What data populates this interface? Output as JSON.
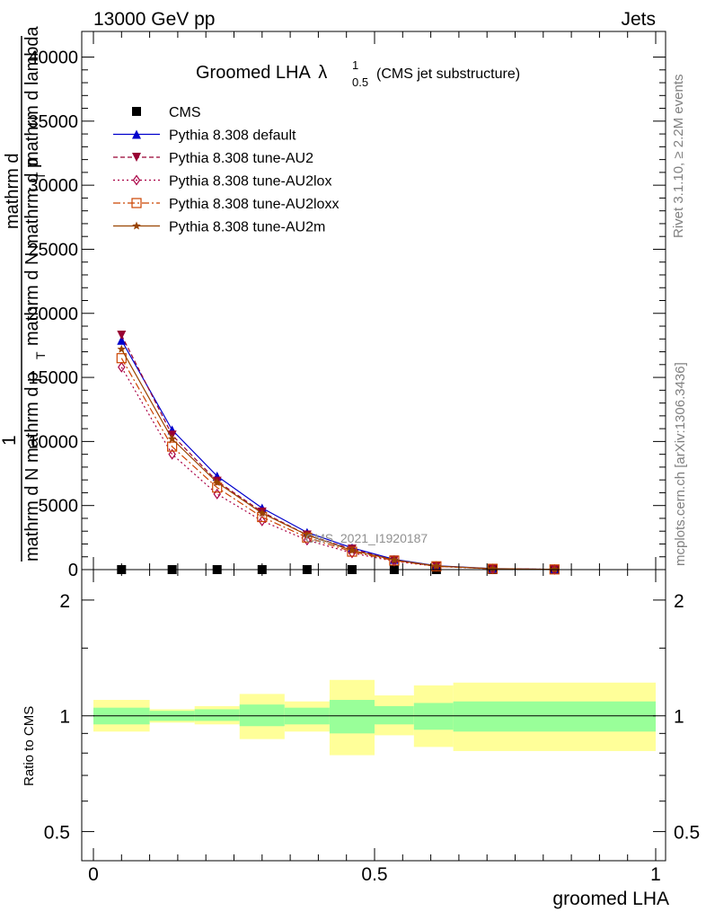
{
  "header": {
    "left": "13000 GeV pp",
    "right": "Jets"
  },
  "side_labels": {
    "rivet": "Rivet 3.1.10, ≥ 2.2M events",
    "mcplots": "mcplots.cern.ch [arXiv:1306.3436]"
  },
  "watermark": "CMS_2021_I1920187",
  "chart_data": [
    {
      "type": "line",
      "title_main": "Groomed LHA",
      "title_lambda": "λ",
      "title_sup": "1",
      "title_sub": "0.5",
      "title_suffix": "(CMS jet substructure)",
      "ylabel_parts": [
        "1",
        "mathrm d N",
        "mathrm d p",
        "T",
        "mathrm d N",
        "mathrm d p",
        "T",
        "mathrm d lambda",
        "mathrm d"
      ],
      "xlim": [
        0,
        1
      ],
      "ylim": [
        0,
        42000
      ],
      "yticks": [
        0,
        5000,
        10000,
        15000,
        20000,
        25000,
        30000,
        35000,
        40000
      ],
      "ytick_labels": [
        "0",
        "5000",
        "10000",
        "15000",
        "20000",
        "25000",
        "30000",
        "35000",
        "40000"
      ],
      "legend_position": "top-left",
      "x": [
        0.05,
        0.14,
        0.22,
        0.3,
        0.38,
        0.46,
        0.535,
        0.61,
        0.71,
        0.82
      ],
      "series": [
        {
          "name": "CMS",
          "color": "#000000",
          "marker": "square-filled",
          "dash": "none",
          "values": [
            0,
            0,
            0,
            0,
            0,
            0,
            0,
            0,
            0,
            0
          ]
        },
        {
          "name": "Pythia 8.308 default",
          "color": "#0000cc",
          "marker": "triangle-up-filled",
          "dash": "solid",
          "values": [
            17900,
            10900,
            7300,
            4800,
            2900,
            1700,
            800,
            300,
            80,
            20
          ]
        },
        {
          "name": "Pythia 8.308 tune-AU2",
          "color": "#990033",
          "marker": "triangle-down-filled",
          "dash": "5,3",
          "values": [
            18300,
            10500,
            6900,
            4500,
            2700,
            1600,
            750,
            270,
            70,
            18
          ]
        },
        {
          "name": "Pythia 8.308 tune-AU2lox",
          "color": "#aa0044",
          "marker": "diamond-open",
          "dash": "2,3",
          "values": [
            15800,
            9000,
            5900,
            3800,
            2300,
            1300,
            650,
            250,
            60,
            15
          ]
        },
        {
          "name": "Pythia 8.308 tune-AU2loxx",
          "color": "#cc4400",
          "marker": "square-open",
          "dash": "8,3,2,3",
          "values": [
            16500,
            9600,
            6400,
            4100,
            2500,
            1400,
            700,
            260,
            65,
            16
          ]
        },
        {
          "name": "Pythia 8.308 tune-AU2m",
          "color": "#994400",
          "marker": "star",
          "dash": "solid",
          "values": [
            17200,
            10200,
            6800,
            4400,
            2700,
            1500,
            750,
            280,
            70,
            18
          ]
        }
      ]
    },
    {
      "type": "area",
      "ylabel": "Ratio to CMS",
      "xlabel": "groomed LHA",
      "xlim": [
        0,
        1
      ],
      "ylim": [
        0.42,
        2.4
      ],
      "log_y": true,
      "yticks": [
        0.5,
        1,
        2
      ],
      "ytick_labels": [
        "0.5",
        "1",
        "2"
      ],
      "xticks": [
        0,
        0.5,
        1
      ],
      "xtick_labels": [
        "0",
        "0.5",
        "1"
      ],
      "reference_line": 1,
      "bins": [
        {
          "x0": 0.0,
          "x1": 0.1,
          "inner": [
            0.95,
            1.05
          ],
          "outer": [
            0.91,
            1.1
          ]
        },
        {
          "x0": 0.1,
          "x1": 0.18,
          "inner": [
            0.97,
            1.03
          ],
          "outer": [
            0.96,
            1.04
          ]
        },
        {
          "x0": 0.18,
          "x1": 0.26,
          "inner": [
            0.97,
            1.04
          ],
          "outer": [
            0.95,
            1.06
          ]
        },
        {
          "x0": 0.26,
          "x1": 0.34,
          "inner": [
            0.94,
            1.07
          ],
          "outer": [
            0.87,
            1.14
          ]
        },
        {
          "x0": 0.34,
          "x1": 0.42,
          "inner": [
            0.95,
            1.05
          ],
          "outer": [
            0.91,
            1.09
          ]
        },
        {
          "x0": 0.42,
          "x1": 0.5,
          "inner": [
            0.9,
            1.1
          ],
          "outer": [
            0.79,
            1.24
          ]
        },
        {
          "x0": 0.5,
          "x1": 0.57,
          "inner": [
            0.95,
            1.06
          ],
          "outer": [
            0.89,
            1.13
          ]
        },
        {
          "x0": 0.57,
          "x1": 0.64,
          "inner": [
            0.92,
            1.08
          ],
          "outer": [
            0.83,
            1.2
          ]
        },
        {
          "x0": 0.64,
          "x1": 1.0,
          "inner": [
            0.91,
            1.09
          ],
          "outer": [
            0.81,
            1.22
          ]
        }
      ],
      "band_colors": {
        "inner": "#99ff99",
        "outer": "#ffff99"
      }
    }
  ]
}
